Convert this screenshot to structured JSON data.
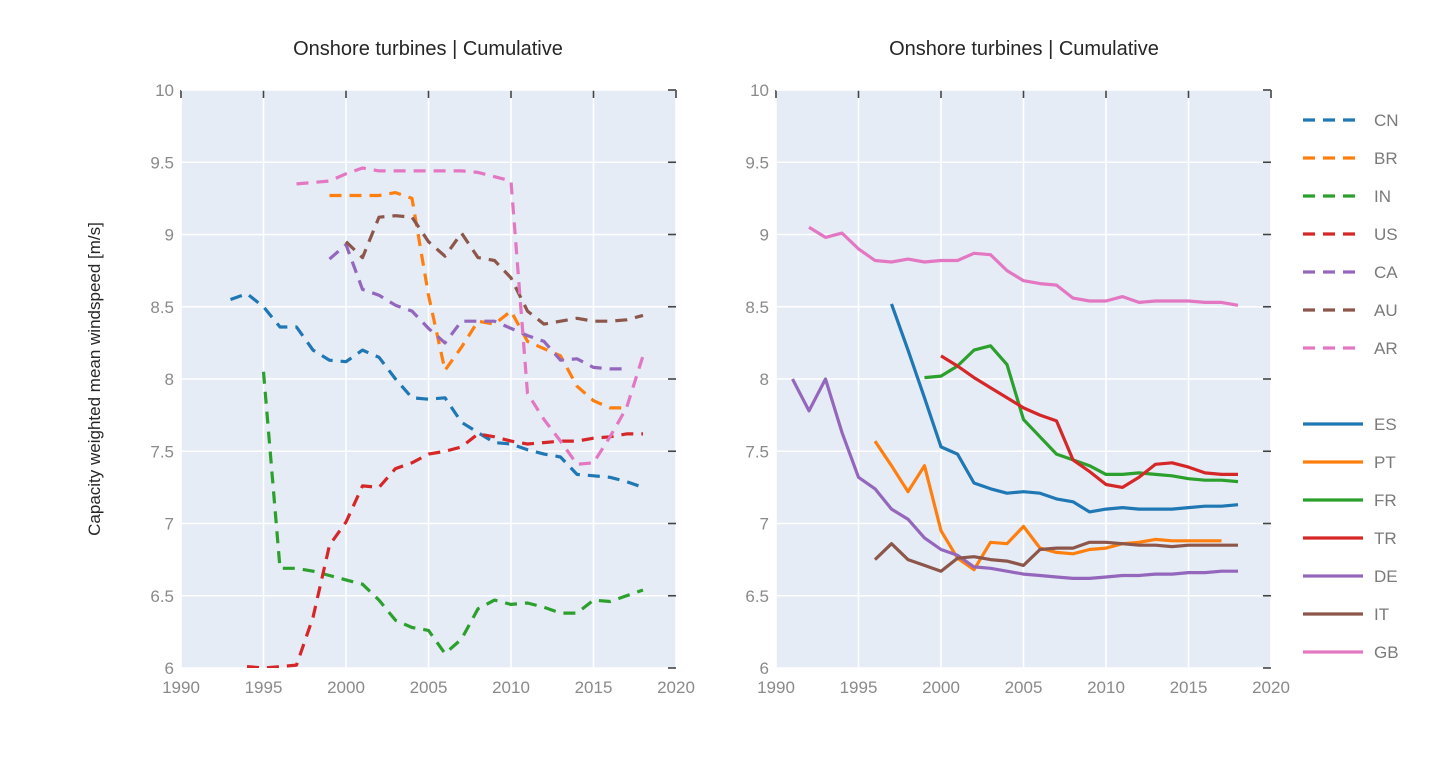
{
  "figure": {
    "ylabel": "Capacity weighted mean windspeed [m/s]"
  },
  "chart_data": [
    {
      "type": "line",
      "title": "Onshore turbines | Cumulative",
      "xlabel": "",
      "ylabel": "Capacity weighted mean windspeed [m/s]",
      "xlim": [
        1990,
        2020
      ],
      "ylim": [
        6,
        10
      ],
      "xticks": [
        1990,
        1995,
        2000,
        2005,
        2010,
        2015,
        2020
      ],
      "yticks": [
        6,
        6.5,
        7,
        7.5,
        8,
        8.5,
        9,
        9.5,
        10
      ],
      "ytick_labels": [
        "6",
        "6.5",
        "7",
        "7.5",
        "8",
        "8.5",
        "9",
        "9.5",
        "10"
      ],
      "grid": true,
      "line_style": "dashed",
      "series": [
        {
          "name": "CN",
          "color": "#1f77b4",
          "x": [
            1993,
            1994,
            1995,
            1996,
            1997,
            1998,
            1999,
            2000,
            2001,
            2002,
            2003,
            2004,
            2005,
            2006,
            2007,
            2008,
            2009,
            2010,
            2011,
            2012,
            2013,
            2014,
            2015,
            2016,
            2017,
            2018
          ],
          "y": [
            8.55,
            8.59,
            8.5,
            8.36,
            8.36,
            8.2,
            8.13,
            8.12,
            8.2,
            8.15,
            8.0,
            7.87,
            7.86,
            7.87,
            7.7,
            7.63,
            7.56,
            7.55,
            7.51,
            7.48,
            7.46,
            7.34,
            7.33,
            7.32,
            7.29,
            7.25
          ]
        },
        {
          "name": "BR",
          "color": "#ff7f0e",
          "x": [
            1999,
            2000,
            2001,
            2002,
            2003,
            2004,
            2005,
            2006,
            2007,
            2008,
            2009,
            2010,
            2011,
            2012,
            2013,
            2014,
            2015,
            2016,
            2017
          ],
          "y": [
            9.27,
            9.27,
            9.27,
            9.27,
            9.29,
            9.25,
            8.58,
            8.06,
            8.22,
            8.4,
            8.38,
            8.47,
            8.26,
            8.21,
            8.16,
            7.95,
            7.85,
            7.8,
            7.8
          ]
        },
        {
          "name": "IN",
          "color": "#2ca02c",
          "x": [
            1995,
            1996,
            1997,
            1998,
            1999,
            2000,
            2001,
            2002,
            2003,
            2004,
            2005,
            2006,
            2007,
            2008,
            2009,
            2010,
            2011,
            2012,
            2013,
            2014,
            2015,
            2016,
            2017,
            2018
          ],
          "y": [
            8.05,
            6.69,
            6.69,
            6.67,
            6.64,
            6.61,
            6.58,
            6.47,
            6.33,
            6.28,
            6.26,
            6.1,
            6.2,
            6.41,
            6.47,
            6.44,
            6.45,
            6.42,
            6.38,
            6.38,
            6.47,
            6.46,
            6.5,
            6.54
          ]
        },
        {
          "name": "US",
          "color": "#d62728",
          "x": [
            1994,
            1995,
            1996,
            1997,
            1998,
            1999,
            2000,
            2001,
            2002,
            2003,
            2004,
            2005,
            2006,
            2007,
            2008,
            2009,
            2010,
            2011,
            2012,
            2013,
            2014,
            2015,
            2016,
            2017,
            2018
          ],
          "y": [
            6.01,
            6.0,
            6.01,
            6.02,
            6.35,
            6.85,
            7.01,
            7.26,
            7.25,
            7.38,
            7.42,
            7.48,
            7.5,
            7.53,
            7.62,
            7.6,
            7.57,
            7.55,
            7.56,
            7.57,
            7.57,
            7.59,
            7.6,
            7.62,
            7.62
          ]
        },
        {
          "name": "CA",
          "color": "#9467bd",
          "x": [
            1999,
            2000,
            2001,
            2002,
            2003,
            2004,
            2005,
            2006,
            2007,
            2008,
            2009,
            2010,
            2011,
            2012,
            2013,
            2014,
            2015,
            2016,
            2017
          ],
          "y": [
            8.83,
            8.93,
            8.62,
            8.58,
            8.51,
            8.47,
            8.35,
            8.25,
            8.4,
            8.4,
            8.4,
            8.35,
            8.3,
            8.26,
            8.13,
            8.14,
            8.08,
            8.07,
            8.07
          ]
        },
        {
          "name": "AU",
          "color": "#8c564b",
          "x": [
            2000,
            2001,
            2002,
            2003,
            2004,
            2005,
            2006,
            2007,
            2008,
            2009,
            2010,
            2011,
            2012,
            2013,
            2014,
            2015,
            2016,
            2017,
            2018
          ],
          "y": [
            8.95,
            8.84,
            9.12,
            9.13,
            9.12,
            8.95,
            8.85,
            9.01,
            8.84,
            8.82,
            8.7,
            8.47,
            8.38,
            8.4,
            8.42,
            8.4,
            8.4,
            8.41,
            8.44
          ]
        },
        {
          "name": "AR",
          "color": "#e377c2",
          "x": [
            1997,
            1998,
            1999,
            2000,
            2001,
            2002,
            2003,
            2004,
            2005,
            2006,
            2007,
            2008,
            2009,
            2010,
            2011,
            2012,
            2013,
            2014,
            2015,
            2016,
            2017,
            2018
          ],
          "y": [
            9.35,
            9.36,
            9.37,
            9.42,
            9.46,
            9.44,
            9.44,
            9.44,
            9.44,
            9.44,
            9.44,
            9.43,
            9.4,
            9.37,
            7.9,
            7.72,
            7.57,
            7.41,
            7.42,
            7.6,
            7.8,
            8.16
          ]
        }
      ]
    },
    {
      "type": "line",
      "title": "Onshore turbines | Cumulative",
      "xlabel": "",
      "ylabel": "",
      "xlim": [
        1990,
        2020
      ],
      "ylim": [
        6,
        10
      ],
      "xticks": [
        1990,
        1995,
        2000,
        2005,
        2010,
        2015,
        2020
      ],
      "yticks": [
        6,
        6.5,
        7,
        7.5,
        8,
        8.5,
        9,
        9.5,
        10
      ],
      "ytick_labels": [
        "6",
        "6.5",
        "7",
        "7.5",
        "8",
        "8.5",
        "9",
        "9.5",
        "10"
      ],
      "grid": true,
      "line_style": "solid",
      "series": [
        {
          "name": "ES",
          "color": "#1f77b4",
          "x": [
            1997,
            1998,
            1999,
            2000,
            2001,
            2002,
            2003,
            2004,
            2005,
            2006,
            2007,
            2008,
            2009,
            2010,
            2011,
            2012,
            2013,
            2014,
            2015,
            2016,
            2017,
            2018
          ],
          "y": [
            8.52,
            8.2,
            7.87,
            7.53,
            7.48,
            7.28,
            7.24,
            7.21,
            7.22,
            7.21,
            7.17,
            7.15,
            7.08,
            7.1,
            7.11,
            7.1,
            7.1,
            7.1,
            7.11,
            7.12,
            7.12,
            7.13
          ]
        },
        {
          "name": "PT",
          "color": "#ff7f0e",
          "x": [
            1996,
            1997,
            1998,
            1999,
            2000,
            2001,
            2002,
            2003,
            2004,
            2005,
            2006,
            2007,
            2008,
            2009,
            2010,
            2011,
            2012,
            2013,
            2014,
            2015,
            2016,
            2017
          ],
          "y": [
            7.57,
            7.4,
            7.22,
            7.4,
            6.95,
            6.76,
            6.68,
            6.87,
            6.86,
            6.98,
            6.83,
            6.8,
            6.79,
            6.82,
            6.83,
            6.86,
            6.87,
            6.89,
            6.88,
            6.88,
            6.88,
            6.88
          ]
        },
        {
          "name": "FR",
          "color": "#2ca02c",
          "x": [
            1999,
            2000,
            2001,
            2002,
            2003,
            2004,
            2005,
            2006,
            2007,
            2008,
            2009,
            2010,
            2011,
            2012,
            2013,
            2014,
            2015,
            2016,
            2017,
            2018
          ],
          "y": [
            8.01,
            8.02,
            8.09,
            8.2,
            8.23,
            8.1,
            7.72,
            7.6,
            7.48,
            7.44,
            7.4,
            7.34,
            7.34,
            7.35,
            7.34,
            7.33,
            7.31,
            7.3,
            7.3,
            7.29
          ]
        },
        {
          "name": "TR",
          "color": "#d62728",
          "x": [
            2000,
            2001,
            2002,
            2003,
            2004,
            2005,
            2006,
            2007,
            2008,
            2009,
            2010,
            2011,
            2012,
            2013,
            2014,
            2015,
            2016,
            2017,
            2018
          ],
          "y": [
            8.16,
            8.09,
            8.01,
            7.94,
            7.87,
            7.8,
            7.75,
            7.71,
            7.44,
            7.36,
            7.27,
            7.25,
            7.32,
            7.41,
            7.42,
            7.39,
            7.35,
            7.34,
            7.34
          ]
        },
        {
          "name": "DE",
          "color": "#9467bd",
          "x": [
            1991,
            1992,
            1993,
            1994,
            1995,
            1996,
            1997,
            1998,
            1999,
            2000,
            2001,
            2002,
            2003,
            2004,
            2005,
            2006,
            2007,
            2008,
            2009,
            2010,
            2011,
            2012,
            2013,
            2014,
            2015,
            2016,
            2017,
            2018
          ],
          "y": [
            8.0,
            7.78,
            8.0,
            7.63,
            7.32,
            7.24,
            7.1,
            7.03,
            6.9,
            6.82,
            6.78,
            6.7,
            6.69,
            6.67,
            6.65,
            6.64,
            6.63,
            6.62,
            6.62,
            6.63,
            6.64,
            6.64,
            6.65,
            6.65,
            6.66,
            6.66,
            6.67,
            6.67
          ]
        },
        {
          "name": "IT",
          "color": "#8c564b",
          "x": [
            1996,
            1997,
            1998,
            1999,
            2000,
            2001,
            2002,
            2003,
            2004,
            2005,
            2006,
            2007,
            2008,
            2009,
            2010,
            2011,
            2012,
            2013,
            2014,
            2015,
            2016,
            2017,
            2018
          ],
          "y": [
            6.75,
            6.86,
            6.75,
            6.71,
            6.67,
            6.76,
            6.77,
            6.75,
            6.74,
            6.71,
            6.82,
            6.83,
            6.83,
            6.87,
            6.87,
            6.86,
            6.85,
            6.85,
            6.84,
            6.85,
            6.85,
            6.85,
            6.85
          ]
        },
        {
          "name": "GB",
          "color": "#e377c2",
          "x": [
            1992,
            1993,
            1994,
            1995,
            1996,
            1997,
            1998,
            1999,
            2000,
            2001,
            2002,
            2003,
            2004,
            2005,
            2006,
            2007,
            2008,
            2009,
            2010,
            2011,
            2012,
            2013,
            2014,
            2015,
            2016,
            2017,
            2018
          ],
          "y": [
            9.05,
            8.98,
            9.01,
            8.9,
            8.82,
            8.81,
            8.83,
            8.81,
            8.82,
            8.82,
            8.87,
            8.86,
            8.75,
            8.68,
            8.66,
            8.65,
            8.56,
            8.54,
            8.54,
            8.57,
            8.53,
            8.54,
            8.54,
            8.54,
            8.53,
            8.53,
            8.51
          ]
        }
      ]
    }
  ]
}
